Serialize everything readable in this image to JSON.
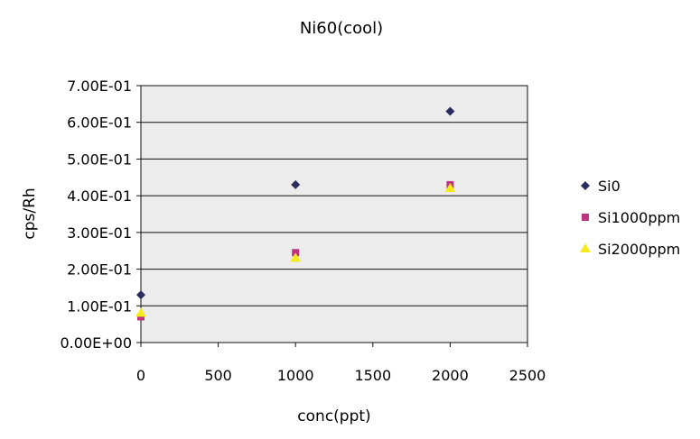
{
  "chart_data": {
    "type": "scatter",
    "title": "Ni60(cool)",
    "xlabel": "conc(ppt)",
    "ylabel": "cps/Rh",
    "xlim": [
      0,
      2500
    ],
    "ylim": [
      0,
      0.7
    ],
    "x_ticks": [
      "0",
      "500",
      "1000",
      "1500",
      "2000",
      "2500"
    ],
    "x_tick_values": [
      0,
      500,
      1000,
      1500,
      2000,
      2500
    ],
    "y_ticks": [
      "0.00E+00",
      "1.00E-01",
      "2.00E-01",
      "3.00E-01",
      "4.00E-01",
      "5.00E-01",
      "6.00E-01",
      "7.00E-01"
    ],
    "y_tick_values": [
      0,
      0.1,
      0.2,
      0.3,
      0.4,
      0.5,
      0.6,
      0.7
    ],
    "grid": "horizontal",
    "legend_position": "right",
    "plot_background": "#ececec",
    "series": [
      {
        "name": "Si0",
        "marker": "diamond",
        "color": "#2b2d5e",
        "x": [
          0,
          1000,
          2000
        ],
        "y": [
          0.13,
          0.43,
          0.63
        ]
      },
      {
        "name": "Si1000ppm",
        "marker": "square",
        "color": "#c0337f",
        "x": [
          0,
          1000,
          2000
        ],
        "y": [
          0.07,
          0.245,
          0.43
        ]
      },
      {
        "name": "Si2000ppm",
        "marker": "triangle",
        "color": "#f5ea1c",
        "x": [
          0,
          1000,
          2000
        ],
        "y": [
          0.08,
          0.23,
          0.42
        ]
      }
    ]
  }
}
